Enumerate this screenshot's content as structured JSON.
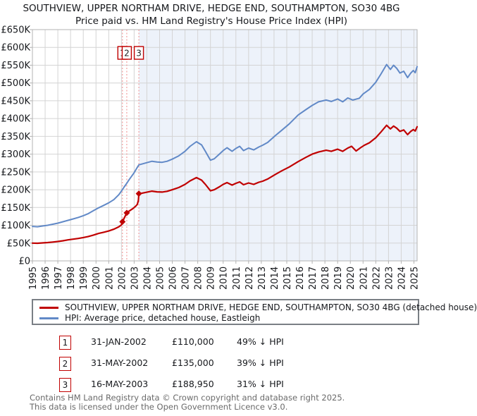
{
  "header": {
    "title": "SOUTHVIEW, UPPER NORTHAM DRIVE, HEDGE END, SOUTHAMPTON, SO30 4BG",
    "subtitle": "Price paid vs. HM Land Registry's House Price Index (HPI)"
  },
  "transactions": [
    {
      "num": "1",
      "date": "31-JAN-2002",
      "price": "£110,000",
      "delta": "49% ↓ HPI"
    },
    {
      "num": "2",
      "date": "31-MAY-2002",
      "price": "£135,000",
      "delta": "39% ↓ HPI"
    },
    {
      "num": "3",
      "date": "16-MAY-2003",
      "price": "£188,950",
      "delta": "31% ↓ HPI"
    }
  ],
  "footer": {
    "line1": "Contains HM Land Registry data © Crown copyright and database right 2025.",
    "line2": "This data is licensed under the Open Government Licence v3.0."
  },
  "chart_data": {
    "type": "line",
    "title": "SOUTHVIEW, UPPER NORTHAM DRIVE, HEDGE END, SOUTHAMPTON, SO30 4BG",
    "subtitle": "Price paid vs. HM Land Registry's House Price Index (HPI)",
    "unit": "GBP thousands",
    "xlim": [
      1995,
      2025.25
    ],
    "ylim": [
      0,
      650
    ],
    "grid": true,
    "legend_position": "bottom",
    "x_ticks": [
      1995,
      1996,
      1997,
      1998,
      1999,
      2000,
      2001,
      2002,
      2003,
      2004,
      2005,
      2006,
      2007,
      2008,
      2009,
      2010,
      2011,
      2012,
      2013,
      2014,
      2015,
      2016,
      2017,
      2018,
      2019,
      2020,
      2021,
      2022,
      2023,
      2024,
      2025
    ],
    "y_tick_values": [
      0,
      50,
      100,
      150,
      200,
      250,
      300,
      350,
      400,
      450,
      500,
      550,
      600,
      650
    ],
    "y_tick_labels": [
      "£0",
      "£50K",
      "£100K",
      "£150K",
      "£200K",
      "£250K",
      "£300K",
      "£350K",
      "£400K",
      "£450K",
      "£500K",
      "£550K",
      "£600K",
      "£650K"
    ],
    "shaded_from": 2003.37,
    "colors": {
      "sale": "#c00000",
      "hpi": "#6189c7",
      "shade": "#edf2fa",
      "grid": "#d4d4d4",
      "border": "#b3b3b3",
      "sale_dash": "#f08d8d"
    },
    "sales": [
      {
        "label": "1",
        "x": 2002.08,
        "y": 110,
        "date": "31-JAN-2002"
      },
      {
        "label": "2",
        "x": 2002.42,
        "y": 135,
        "date": "31-MAY-2002"
      },
      {
        "label": "3",
        "x": 2003.37,
        "y": 188.95,
        "date": "16-MAY-2003"
      }
    ],
    "series": [
      {
        "name": "SOUTHVIEW, UPPER NORTHAM DRIVE, HEDGE END, SOUTHAMPTON, SO30 4BG (detached house)",
        "color": "#c00000",
        "width": 2.2,
        "points": [
          [
            1995.0,
            50
          ],
          [
            1995.4,
            49.5
          ],
          [
            1995.8,
            50.5
          ],
          [
            1996.2,
            51.5
          ],
          [
            1996.6,
            53
          ],
          [
            1997.0,
            54.5
          ],
          [
            1997.4,
            56.5
          ],
          [
            1997.8,
            59
          ],
          [
            1998.2,
            61
          ],
          [
            1998.6,
            63
          ],
          [
            1999.0,
            65.5
          ],
          [
            1999.4,
            68.5
          ],
          [
            1999.8,
            72.5
          ],
          [
            2000.2,
            77
          ],
          [
            2000.6,
            80.5
          ],
          [
            2001.0,
            84
          ],
          [
            2001.4,
            89
          ],
          [
            2001.8,
            96
          ],
          [
            2002.0,
            101
          ],
          [
            2002.08,
            110
          ],
          [
            2002.42,
            135
          ],
          [
            2002.6,
            140
          ],
          [
            2002.9,
            147
          ],
          [
            2003.1,
            153
          ],
          [
            2003.25,
            159
          ],
          [
            2003.33,
            170
          ],
          [
            2003.37,
            188.95
          ],
          [
            2003.6,
            190
          ],
          [
            2004.0,
            193
          ],
          [
            2004.4,
            196
          ],
          [
            2004.8,
            194
          ],
          [
            2005.2,
            193.5
          ],
          [
            2005.6,
            195.5
          ],
          [
            2006.0,
            200
          ],
          [
            2006.5,
            206
          ],
          [
            2007.0,
            215
          ],
          [
            2007.4,
            225
          ],
          [
            2007.9,
            234
          ],
          [
            2008.3,
            227
          ],
          [
            2008.6,
            215
          ],
          [
            2009.0,
            197
          ],
          [
            2009.3,
            200
          ],
          [
            2009.7,
            208
          ],
          [
            2010.0,
            215
          ],
          [
            2010.3,
            220
          ],
          [
            2010.7,
            213
          ],
          [
            2011.0,
            218
          ],
          [
            2011.3,
            222
          ],
          [
            2011.6,
            214
          ],
          [
            2012.0,
            219
          ],
          [
            2012.4,
            215
          ],
          [
            2012.8,
            221
          ],
          [
            2013.1,
            224
          ],
          [
            2013.5,
            230
          ],
          [
            2014.1,
            243
          ],
          [
            2014.6,
            253
          ],
          [
            2015.2,
            264
          ],
          [
            2015.9,
            279
          ],
          [
            2016.5,
            291
          ],
          [
            2017.0,
            300
          ],
          [
            2017.5,
            306
          ],
          [
            2018.1,
            311
          ],
          [
            2018.5,
            308
          ],
          [
            2019.0,
            314
          ],
          [
            2019.4,
            308
          ],
          [
            2019.8,
            317
          ],
          [
            2020.1,
            322
          ],
          [
            2020.45,
            309
          ],
          [
            2020.8,
            318
          ],
          [
            2021.1,
            325
          ],
          [
            2021.5,
            332
          ],
          [
            2022.0,
            346
          ],
          [
            2022.4,
            362
          ],
          [
            2022.85,
            381
          ],
          [
            2023.15,
            371
          ],
          [
            2023.4,
            379
          ],
          [
            2023.65,
            373
          ],
          [
            2023.9,
            364
          ],
          [
            2024.2,
            368
          ],
          [
            2024.5,
            355
          ],
          [
            2024.75,
            364
          ],
          [
            2024.95,
            369
          ],
          [
            2025.1,
            365
          ],
          [
            2025.25,
            377
          ]
        ]
      },
      {
        "name": "HPI: Average price, detached house, Eastleigh",
        "color": "#6189c7",
        "width": 2,
        "points": [
          [
            1995.0,
            97
          ],
          [
            1995.4,
            96
          ],
          [
            1995.8,
            98
          ],
          [
            1996.2,
            100
          ],
          [
            1996.6,
            103
          ],
          [
            1997.0,
            106
          ],
          [
            1997.4,
            110
          ],
          [
            1997.8,
            114
          ],
          [
            1998.2,
            118
          ],
          [
            1998.6,
            122
          ],
          [
            1999.0,
            127
          ],
          [
            1999.4,
            133
          ],
          [
            1999.8,
            141
          ],
          [
            2000.2,
            149
          ],
          [
            2000.6,
            156
          ],
          [
            2001.0,
            163
          ],
          [
            2001.4,
            172
          ],
          [
            2001.8,
            186
          ],
          [
            2002.0,
            196
          ],
          [
            2002.2,
            207
          ],
          [
            2002.42,
            218
          ],
          [
            2002.6,
            228
          ],
          [
            2002.8,
            238
          ],
          [
            2003.0,
            248
          ],
          [
            2003.2,
            260
          ],
          [
            2003.37,
            270
          ],
          [
            2003.6,
            272
          ],
          [
            2004.0,
            276
          ],
          [
            2004.4,
            280
          ],
          [
            2004.8,
            278
          ],
          [
            2005.2,
            277
          ],
          [
            2005.6,
            280
          ],
          [
            2006.0,
            286
          ],
          [
            2006.5,
            295
          ],
          [
            2007.0,
            308
          ],
          [
            2007.4,
            322
          ],
          [
            2007.9,
            335
          ],
          [
            2008.3,
            326
          ],
          [
            2008.6,
            308
          ],
          [
            2009.0,
            283
          ],
          [
            2009.3,
            287
          ],
          [
            2009.7,
            300
          ],
          [
            2010.0,
            310
          ],
          [
            2010.3,
            318
          ],
          [
            2010.7,
            308
          ],
          [
            2011.0,
            316
          ],
          [
            2011.3,
            322
          ],
          [
            2011.6,
            310
          ],
          [
            2012.0,
            317
          ],
          [
            2012.4,
            312
          ],
          [
            2012.8,
            320
          ],
          [
            2013.1,
            325
          ],
          [
            2013.5,
            333
          ],
          [
            2014.1,
            352
          ],
          [
            2014.6,
            367
          ],
          [
            2015.2,
            385
          ],
          [
            2015.9,
            410
          ],
          [
            2016.5,
            425
          ],
          [
            2017.0,
            437
          ],
          [
            2017.5,
            447
          ],
          [
            2018.1,
            452
          ],
          [
            2018.5,
            448
          ],
          [
            2019.0,
            455
          ],
          [
            2019.4,
            447
          ],
          [
            2019.8,
            458
          ],
          [
            2020.2,
            452
          ],
          [
            2020.7,
            457
          ],
          [
            2021.0,
            469
          ],
          [
            2021.5,
            482
          ],
          [
            2022.0,
            502
          ],
          [
            2022.4,
            525
          ],
          [
            2022.85,
            552
          ],
          [
            2023.15,
            538
          ],
          [
            2023.4,
            550
          ],
          [
            2023.65,
            541
          ],
          [
            2023.9,
            528
          ],
          [
            2024.2,
            533
          ],
          [
            2024.5,
            515
          ],
          [
            2024.75,
            528
          ],
          [
            2024.95,
            535
          ],
          [
            2025.1,
            529
          ],
          [
            2025.25,
            546
          ]
        ]
      }
    ]
  }
}
